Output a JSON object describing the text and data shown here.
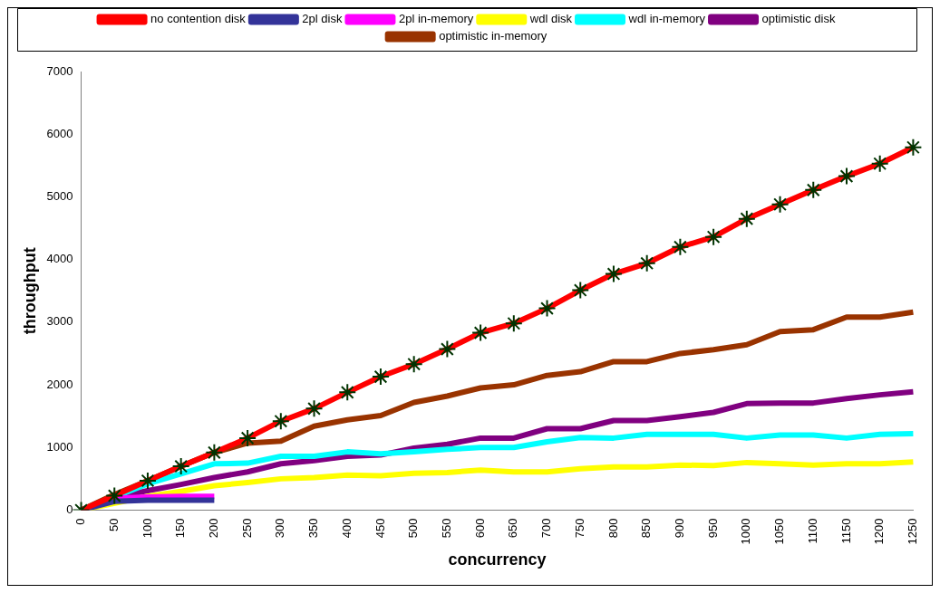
{
  "chart_data": {
    "type": "line",
    "xlabel": "concurrency",
    "ylabel": "throughput",
    "categories": [
      "0",
      "50",
      "100",
      "150",
      "200",
      "250",
      "300",
      "350",
      "400",
      "450",
      "500",
      "550",
      "600",
      "650",
      "700",
      "750",
      "800",
      "850",
      "900",
      "950",
      "1000",
      "1050",
      "1100",
      "1150",
      "1200",
      "1250"
    ],
    "ylim": [
      0,
      7000
    ],
    "yticks": [
      0,
      1000,
      2000,
      3000,
      4000,
      5000,
      6000,
      7000
    ],
    "grid": false,
    "legend": "top",
    "line_style": "solid",
    "series": [
      {
        "name": "no contention disk",
        "color": "#ff0000",
        "marker": "cross",
        "values": [
          0,
          230,
          470,
          700,
          920,
          1150,
          1420,
          1620,
          1880,
          2130,
          2330,
          2570,
          2830,
          2980,
          3220,
          3510,
          3770,
          3940,
          4200,
          4360,
          4650,
          4880,
          5110,
          5330,
          5530,
          5790
        ]
      },
      {
        "name": "2pl disk",
        "color": "#333399",
        "marker": "none",
        "values": [
          0,
          140,
          160,
          160,
          160,
          null,
          null,
          null,
          null,
          null,
          null,
          null,
          null,
          null,
          null,
          null,
          null,
          null,
          null,
          null,
          null,
          null,
          null,
          null,
          null,
          null
        ]
      },
      {
        "name": "2pl in-memory",
        "color": "#ff00ff",
        "marker": "none",
        "values": [
          0,
          190,
          210,
          220,
          220,
          null,
          null,
          null,
          null,
          null,
          null,
          null,
          null,
          null,
          null,
          null,
          null,
          null,
          null,
          null,
          null,
          null,
          null,
          null,
          null,
          null
        ]
      },
      {
        "name": "wdl disk",
        "color": "#ffff00",
        "marker": "none",
        "values": [
          0,
          null,
          220,
          300,
          390,
          440,
          500,
          520,
          560,
          550,
          590,
          600,
          640,
          610,
          610,
          660,
          690,
          690,
          720,
          710,
          760,
          740,
          720,
          740,
          740,
          770
        ]
      },
      {
        "name": "wdl in-memory",
        "color": "#00ffff",
        "marker": "none",
        "values": [
          0,
          null,
          420,
          580,
          740,
          750,
          860,
          860,
          930,
          900,
          930,
          970,
          1000,
          1000,
          1090,
          1160,
          1150,
          1210,
          1210,
          1210,
          1150,
          1200,
          1200,
          1150,
          1210,
          1220
        ]
      },
      {
        "name": "optimistic disk",
        "color": "#800080",
        "marker": "none",
        "values": [
          0,
          200,
          310,
          410,
          520,
          610,
          740,
          790,
          860,
          880,
          990,
          1050,
          1150,
          1150,
          1300,
          1300,
          1430,
          1430,
          1490,
          1560,
          1700,
          1710,
          1710,
          1780,
          1840,
          1890
        ]
      },
      {
        "name": "optimistic in-memory",
        "color": "#993300",
        "marker": "none",
        "values": [
          0,
          250,
          470,
          700,
          920,
          1070,
          1100,
          1340,
          1440,
          1510,
          1720,
          1820,
          1950,
          2000,
          2150,
          2210,
          2370,
          2370,
          2500,
          2560,
          2640,
          2850,
          2880,
          3080,
          3080,
          3160
        ]
      }
    ]
  }
}
